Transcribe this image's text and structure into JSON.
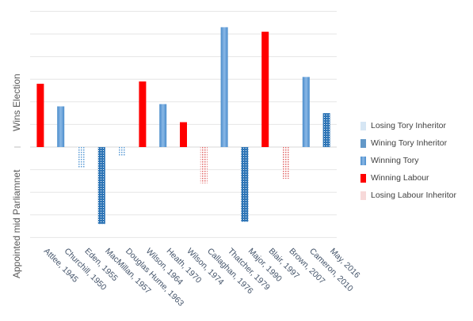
{
  "chart_data": {
    "type": "bar",
    "title": "",
    "xlabel": "",
    "ylabel_top": "Wins Election",
    "ylabel_bottom": "Appointed mid Parliamnet",
    "grid": true,
    "legend_position": "right",
    "ylim": [
      -4,
      6
    ],
    "categories": [
      "Attlee, 1945",
      "Churchill, 1950",
      "Eden, 1955",
      "MacMillan, 1957",
      "Douglas Hume, 1963",
      "Wilson, 1964",
      "Heath, 1970",
      "Wilson, 1974",
      "Callaghan, 1976",
      "Thatcher, 1979",
      "Major, 1990",
      "Blair, 1997",
      "Brown, 2007",
      "Cameron, 2010",
      "May, 2016"
    ],
    "series": [
      {
        "name": "Losing Tory Inheritor",
        "color": "#5b9bd5",
        "pattern": "dots-light",
        "values": [
          null,
          null,
          -0.9,
          null,
          -0.4,
          null,
          null,
          null,
          null,
          null,
          null,
          null,
          null,
          null,
          null
        ]
      },
      {
        "name": "Wining Tory Inheritor",
        "color": "#2e75b6",
        "pattern": "dots-dense",
        "values": [
          null,
          null,
          null,
          -3.4,
          null,
          null,
          null,
          null,
          null,
          null,
          -3.3,
          null,
          null,
          null,
          1.5
        ]
      },
      {
        "name": "Winning Tory",
        "color": "#5b9bd5",
        "pattern": "gradient",
        "values": [
          null,
          1.8,
          null,
          null,
          null,
          null,
          1.9,
          null,
          null,
          5.3,
          null,
          null,
          null,
          3.1,
          null
        ]
      },
      {
        "name": "Winning Labour",
        "color": "#ff0000",
        "pattern": "solid",
        "values": [
          2.8,
          null,
          null,
          null,
          null,
          2.9,
          null,
          1.1,
          null,
          null,
          null,
          5.1,
          null,
          null,
          null
        ]
      },
      {
        "name": "Losing Labour Inheritor",
        "color": "#e06666",
        "pattern": "dots-red",
        "values": [
          null,
          null,
          null,
          null,
          null,
          null,
          null,
          null,
          -1.6,
          null,
          null,
          null,
          -1.4,
          null,
          null
        ]
      }
    ]
  }
}
